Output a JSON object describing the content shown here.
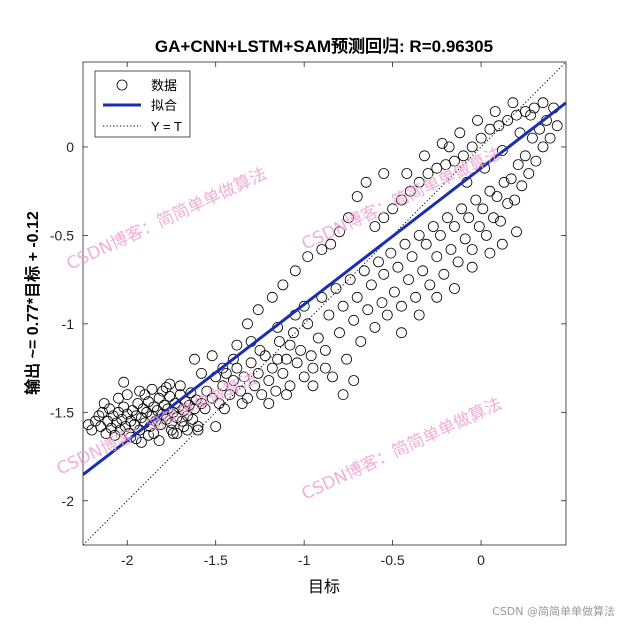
{
  "chart_data": {
    "type": "scatter",
    "title": "GA+CNN+LSTM+SAM预测回归: R=0.96305",
    "xlabel": "目标",
    "ylabel": "输出 ~= 0.77*目标 + -0.12",
    "xlim": [
      -2.25,
      0.48
    ],
    "ylim": [
      -2.25,
      0.48
    ],
    "xticks": [
      -2,
      -1.5,
      -1,
      -0.5,
      0
    ],
    "yticks": [
      -2,
      -1.5,
      -1,
      -0.5,
      0
    ],
    "grid": false,
    "legend_position": "top-left",
    "fit": {
      "slope": 0.77,
      "intercept": -0.12
    },
    "series": [
      {
        "name": "数据",
        "kind": "marker-circle",
        "color": "#000000",
        "points": [
          [
            -2.22,
            -1.57
          ],
          [
            -2.2,
            -1.6
          ],
          [
            -2.18,
            -1.55
          ],
          [
            -2.16,
            -1.52
          ],
          [
            -2.15,
            -1.58
          ],
          [
            -2.14,
            -1.5
          ],
          [
            -2.12,
            -1.62
          ],
          [
            -2.11,
            -1.55
          ],
          [
            -2.1,
            -1.48
          ],
          [
            -2.09,
            -1.59
          ],
          [
            -2.08,
            -1.52
          ],
          [
            -2.07,
            -1.63
          ],
          [
            -2.06,
            -1.56
          ],
          [
            -2.05,
            -1.5
          ],
          [
            -2.04,
            -1.6
          ],
          [
            -2.03,
            -1.54
          ],
          [
            -2.02,
            -1.47
          ],
          [
            -2.01,
            -1.58
          ],
          [
            -2.0,
            -1.51
          ],
          [
            -1.99,
            -1.62
          ],
          [
            -1.98,
            -1.55
          ],
          [
            -1.97,
            -1.49
          ],
          [
            -1.96,
            -1.57
          ],
          [
            -1.95,
            -1.52
          ],
          [
            -1.94,
            -1.45
          ],
          [
            -1.93,
            -1.6
          ],
          [
            -1.92,
            -1.53
          ],
          [
            -1.91,
            -1.48
          ],
          [
            -1.9,
            -1.56
          ],
          [
            -1.89,
            -1.5
          ],
          [
            -1.88,
            -1.44
          ],
          [
            -1.87,
            -1.58
          ],
          [
            -1.86,
            -1.52
          ],
          [
            -1.85,
            -1.47
          ],
          [
            -1.84,
            -1.55
          ],
          [
            -1.83,
            -1.49
          ],
          [
            -1.82,
            -1.42
          ],
          [
            -1.81,
            -1.57
          ],
          [
            -1.8,
            -1.51
          ],
          [
            -1.79,
            -1.46
          ],
          [
            -1.78,
            -1.54
          ],
          [
            -1.77,
            -1.48
          ],
          [
            -1.76,
            -1.41
          ],
          [
            -1.75,
            -1.56
          ],
          [
            -1.74,
            -1.5
          ],
          [
            -1.73,
            -1.45
          ],
          [
            -1.72,
            -1.53
          ],
          [
            -1.71,
            -1.47
          ],
          [
            -1.7,
            -1.4
          ],
          [
            -1.69,
            -1.55
          ],
          [
            -1.68,
            -1.49
          ],
          [
            -1.67,
            -1.44
          ],
          [
            -1.66,
            -1.52
          ],
          [
            -1.65,
            -1.46
          ],
          [
            -1.64,
            -1.39
          ],
          [
            -1.63,
            -1.54
          ],
          [
            -1.62,
            -1.48
          ],
          [
            -1.61,
            -1.43
          ],
          [
            -1.6,
            -1.58
          ],
          [
            -1.58,
            -1.45
          ],
          [
            -1.95,
            -1.65
          ],
          [
            -1.9,
            -1.4
          ],
          [
            -1.85,
            -1.62
          ],
          [
            -1.8,
            -1.38
          ],
          [
            -1.75,
            -1.6
          ],
          [
            -1.7,
            -1.35
          ],
          [
            -2.05,
            -1.42
          ],
          [
            -1.98,
            -1.64
          ],
          [
            -1.88,
            -1.63
          ],
          [
            -1.78,
            -1.36
          ],
          [
            -2.02,
            -1.33
          ],
          [
            -1.92,
            -1.67
          ],
          [
            -1.82,
            -1.66
          ],
          [
            -1.72,
            -1.62
          ],
          [
            -1.66,
            -1.6
          ],
          [
            -2.13,
            -1.45
          ],
          [
            -2.0,
            -1.4
          ],
          [
            -1.93,
            -1.38
          ],
          [
            -1.86,
            -1.37
          ],
          [
            -1.76,
            -1.34
          ],
          [
            -1.55,
            -1.38
          ],
          [
            -1.52,
            -1.42
          ],
          [
            -1.5,
            -1.3
          ],
          [
            -1.48,
            -1.45
          ],
          [
            -1.46,
            -1.35
          ],
          [
            -1.44,
            -1.28
          ],
          [
            -1.42,
            -1.4
          ],
          [
            -1.4,
            -1.32
          ],
          [
            -1.38,
            -1.25
          ],
          [
            -1.36,
            -1.38
          ],
          [
            -1.34,
            -1.3
          ],
          [
            -1.32,
            -1.42
          ],
          [
            -1.3,
            -1.22
          ],
          [
            -1.28,
            -1.35
          ],
          [
            -1.26,
            -1.28
          ],
          [
            -1.24,
            -1.4
          ],
          [
            -1.22,
            -1.18
          ],
          [
            -1.2,
            -1.32
          ],
          [
            -1.18,
            -1.25
          ],
          [
            -1.16,
            -1.38
          ],
          [
            -1.14,
            -1.1
          ],
          [
            -1.12,
            -1.28
          ],
          [
            -1.1,
            -1.2
          ],
          [
            -1.08,
            -1.35
          ],
          [
            -1.06,
            -1.05
          ],
          [
            -1.04,
            -1.22
          ],
          [
            -1.02,
            -1.15
          ],
          [
            -1.0,
            -1.3
          ],
          [
            -0.98,
            -1.0
          ],
          [
            -0.96,
            -1.18
          ],
          [
            -1.45,
            -1.48
          ],
          [
            -1.35,
            -1.45
          ],
          [
            -1.25,
            -1.15
          ],
          [
            -1.15,
            -1.02
          ],
          [
            -1.05,
            -0.95
          ],
          [
            -1.4,
            -1.2
          ],
          [
            -1.3,
            -1.1
          ],
          [
            -1.2,
            -1.45
          ],
          [
            -1.1,
            -1.4
          ],
          [
            -1.0,
            -0.9
          ],
          [
            -0.95,
            -1.25
          ],
          [
            -0.92,
            -1.08
          ],
          [
            -0.9,
            -0.85
          ],
          [
            -0.88,
            -1.15
          ],
          [
            -0.86,
            -0.95
          ],
          [
            -0.84,
            -1.3
          ],
          [
            -0.82,
            -0.8
          ],
          [
            -0.8,
            -1.05
          ],
          [
            -0.78,
            -0.9
          ],
          [
            -0.76,
            -1.2
          ],
          [
            -0.74,
            -0.75
          ],
          [
            -0.72,
            -0.98
          ],
          [
            -0.7,
            -0.85
          ],
          [
            -0.68,
            -1.1
          ],
          [
            -0.66,
            -0.7
          ],
          [
            -0.64,
            -0.92
          ],
          [
            -0.62,
            -0.78
          ],
          [
            -0.6,
            -1.02
          ],
          [
            -0.58,
            -0.65
          ],
          [
            -0.56,
            -0.88
          ],
          [
            -0.55,
            -0.72
          ],
          [
            -0.53,
            -0.95
          ],
          [
            -0.51,
            -0.6
          ],
          [
            -0.49,
            -0.82
          ],
          [
            -0.47,
            -0.68
          ],
          [
            -0.45,
            -0.9
          ],
          [
            -0.43,
            -0.55
          ],
          [
            -0.41,
            -0.75
          ],
          [
            -0.39,
            -0.62
          ],
          [
            -0.37,
            -0.85
          ],
          [
            -0.35,
            -0.5
          ],
          [
            -0.33,
            -0.7
          ],
          [
            -0.31,
            -0.55
          ],
          [
            -0.29,
            -0.78
          ],
          [
            -0.27,
            -0.45
          ],
          [
            -0.25,
            -0.62
          ],
          [
            -0.23,
            -0.5
          ],
          [
            -0.21,
            -0.72
          ],
          [
            -0.19,
            -0.4
          ],
          [
            -0.17,
            -0.58
          ],
          [
            -0.15,
            -0.45
          ],
          [
            -0.13,
            -0.65
          ],
          [
            -0.11,
            -0.35
          ],
          [
            -0.09,
            -0.52
          ],
          [
            -0.07,
            -0.4
          ],
          [
            -0.05,
            -0.58
          ],
          [
            -0.03,
            -0.3
          ],
          [
            -0.01,
            -0.45
          ],
          [
            0.01,
            -0.35
          ],
          [
            0.03,
            -0.5
          ],
          [
            0.05,
            -0.25
          ],
          [
            0.07,
            -0.4
          ],
          [
            0.09,
            -0.28
          ],
          [
            0.11,
            -0.42
          ],
          [
            0.13,
            -0.2
          ],
          [
            0.15,
            -0.32
          ],
          [
            0.17,
            -0.18
          ],
          [
            0.19,
            -0.3
          ],
          [
            0.21,
            -0.1
          ],
          [
            0.23,
            -0.22
          ],
          [
            0.25,
            -0.05
          ],
          [
            0.27,
            -0.15
          ],
          [
            0.29,
            0.05
          ],
          [
            0.31,
            -0.08
          ],
          [
            0.33,
            0.1
          ],
          [
            0.35,
            0.0
          ],
          [
            0.37,
            0.15
          ],
          [
            0.39,
            0.05
          ],
          [
            0.41,
            0.22
          ],
          [
            0.43,
            0.12
          ],
          [
            -0.6,
            -0.45
          ],
          [
            -0.55,
            -0.4
          ],
          [
            -0.5,
            -0.35
          ],
          [
            -0.45,
            -0.3
          ],
          [
            -0.4,
            -0.25
          ],
          [
            -0.35,
            -0.2
          ],
          [
            -0.3,
            -0.15
          ],
          [
            -0.25,
            -0.12
          ],
          [
            -0.2,
            -0.1
          ],
          [
            -0.15,
            -0.08
          ],
          [
            -0.1,
            -0.05
          ],
          [
            -0.05,
            0.0
          ],
          [
            0.0,
            0.05
          ],
          [
            0.05,
            0.1
          ],
          [
            0.1,
            0.12
          ],
          [
            0.15,
            0.15
          ],
          [
            0.2,
            0.18
          ],
          [
            0.25,
            0.2
          ],
          [
            0.3,
            0.22
          ],
          [
            0.35,
            0.25
          ],
          [
            -0.7,
            -0.28
          ],
          [
            -0.65,
            -0.2
          ],
          [
            -0.42,
            -0.15
          ],
          [
            -0.32,
            -0.05
          ],
          [
            -0.22,
            0.02
          ],
          [
            -0.12,
            0.08
          ],
          [
            -0.02,
            0.15
          ],
          [
            0.08,
            0.2
          ],
          [
            0.18,
            0.25
          ],
          [
            0.28,
            0.18
          ],
          [
            -0.85,
            -0.55
          ],
          [
            -0.8,
            -0.48
          ],
          [
            -0.75,
            -0.4
          ],
          [
            -1.05,
            -0.7
          ],
          [
            -0.98,
            -0.62
          ],
          [
            -0.9,
            -0.58
          ],
          [
            -0.45,
            -1.05
          ],
          [
            -0.35,
            -0.95
          ],
          [
            -0.25,
            -0.85
          ],
          [
            -0.15,
            -0.8
          ],
          [
            -0.05,
            -0.68
          ],
          [
            0.05,
            -0.6
          ],
          [
            0.12,
            -0.55
          ],
          [
            0.2,
            -0.48
          ],
          [
            -0.55,
            -0.15
          ],
          [
            -0.18,
            0.0
          ],
          [
            -0.08,
            -0.2
          ],
          [
            0.02,
            -0.12
          ],
          [
            0.12,
            -0.02
          ],
          [
            0.22,
            0.08
          ],
          [
            -1.15,
            -1.2
          ],
          [
            -1.08,
            -1.12
          ],
          [
            -0.95,
            -1.35
          ],
          [
            -0.88,
            -1.25
          ],
          [
            -0.78,
            -1.4
          ],
          [
            -0.72,
            -1.32
          ],
          [
            -1.5,
            -1.58
          ],
          [
            -1.58,
            -1.28
          ],
          [
            -1.62,
            -1.2
          ],
          [
            -1.52,
            -1.18
          ],
          [
            -1.68,
            -1.58
          ],
          [
            -1.74,
            -1.62
          ],
          [
            -1.6,
            -1.6
          ],
          [
            -1.56,
            -1.48
          ],
          [
            -1.46,
            -1.25
          ],
          [
            -1.38,
            -1.12
          ],
          [
            -1.32,
            -1.0
          ],
          [
            -1.26,
            -0.92
          ],
          [
            -1.18,
            -0.85
          ],
          [
            -1.12,
            -0.78
          ]
        ]
      },
      {
        "name": "拟合",
        "kind": "line",
        "color": "#1a2eb0"
      },
      {
        "name": "Y = T",
        "kind": "dotted-line",
        "color": "#000000"
      }
    ],
    "watermark": "CSDN博客：简简单单做算法"
  },
  "footer": {
    "credit": "CSDN @简简单单做算法"
  }
}
